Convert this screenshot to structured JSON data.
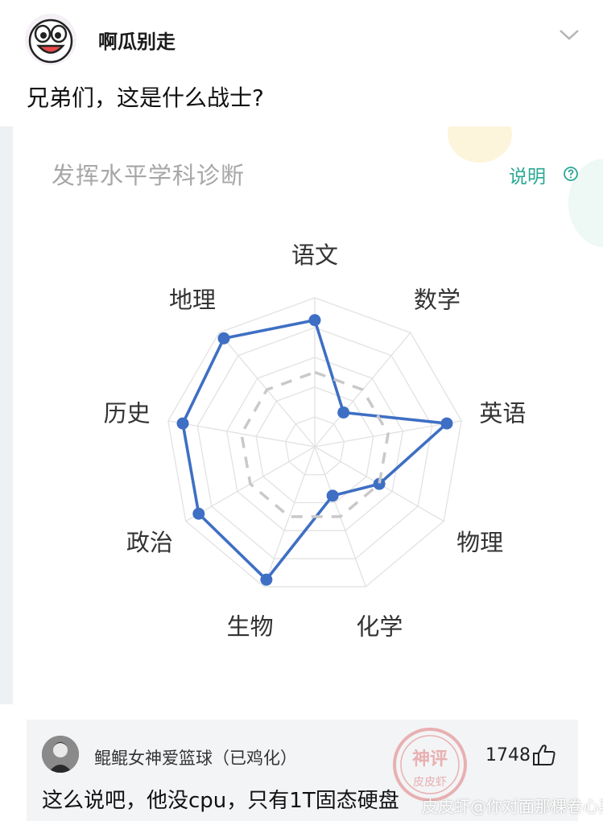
{
  "post": {
    "username": "啊瓜别走",
    "text": "兄弟们，这是什么战士?"
  },
  "card": {
    "title": "发挥水平学科诊断",
    "explain_label": "说明",
    "help_icon": "help-circle-icon"
  },
  "chart_data": {
    "type": "radar",
    "title": "发挥水平学科诊断",
    "categories": [
      "语文",
      "数学",
      "英语",
      "物理",
      "化学",
      "生物",
      "政治",
      "历史",
      "地理"
    ],
    "rlim": [
      0,
      100
    ],
    "grid_levels": 5,
    "series": [
      {
        "values": [
          85,
          30,
          90,
          50,
          35,
          95,
          90,
          90,
          95
        ],
        "color": "#3e6fc4",
        "style": "solid"
      },
      {
        "values": [
          50,
          50,
          50,
          50,
          50,
          50,
          50,
          50,
          50
        ],
        "color": "#c9c9c9",
        "style": "dashed"
      }
    ]
  },
  "comment": {
    "username": "鲲鲲女神爱篮球（已鸡化）",
    "likes": "1748",
    "text": "这么说吧，他没cpu，只有1T固态硬盘",
    "like_icon": "thumbs-up-icon"
  },
  "watermark": {
    "stamp_top": "神评",
    "stamp_bottom": "皮皮虾",
    "text": "皮皮虾@你对面那棵卷心菜"
  }
}
